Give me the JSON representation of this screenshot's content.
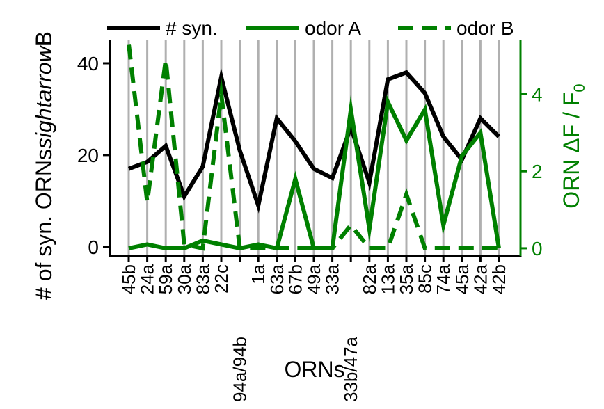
{
  "chart_data": {
    "type": "line",
    "xlabel": "ORNs",
    "ylabel_left": "# of syn. ORNs",
    "ylabel_left_suffix": "ightarrow",
    "ylabel_left_tail": "B",
    "ylabel_left_s": "s",
    "ylabel_right": "ORN ΔF / F",
    "ylabel_right_sub": "0",
    "categories": [
      "45b",
      "24a",
      "59a",
      "30a",
      "83a",
      "22c",
      "94a/94b",
      "1a",
      "63a",
      "67b",
      "49a",
      "33a",
      "33b/47a",
      "82a",
      "13a",
      "35a",
      "85c",
      "74a",
      "45a",
      "42a",
      "42b"
    ],
    "left_axis": {
      "ylim": [
        -2,
        45
      ],
      "ticks": [
        0,
        20,
        40
      ],
      "color": "#000000"
    },
    "right_axis": {
      "ylim": [
        -0.2,
        5.4
      ],
      "ticks": [
        0,
        2,
        4
      ],
      "color": "#008000"
    },
    "grid": "vertical",
    "legend_position": "top",
    "series": [
      {
        "name": "# syn.",
        "axis": "left",
        "style": "solid",
        "color": "#000000",
        "values": [
          17,
          18.5,
          22,
          11,
          17.5,
          37,
          21,
          9,
          28,
          23,
          17,
          15,
          26,
          14,
          36.5,
          38,
          33.5,
          24,
          19,
          28,
          24
        ]
      },
      {
        "name": "odor A",
        "axis": "right",
        "style": "solid",
        "color": "#008000",
        "values": [
          0,
          0.1,
          0,
          0,
          0.2,
          0.1,
          0,
          0.1,
          0,
          1.8,
          0,
          0,
          3.6,
          0.5,
          3.8,
          2.8,
          3.6,
          0.6,
          2.4,
          3,
          0
        ]
      },
      {
        "name": "odor B",
        "axis": "right",
        "style": "dashed",
        "color": "#008000",
        "values": [
          5.3,
          1.2,
          4.9,
          0.1,
          0,
          4,
          0,
          0,
          0,
          0,
          0,
          0,
          0.6,
          0,
          0,
          1.4,
          0,
          0,
          0,
          0,
          0
        ]
      }
    ]
  }
}
